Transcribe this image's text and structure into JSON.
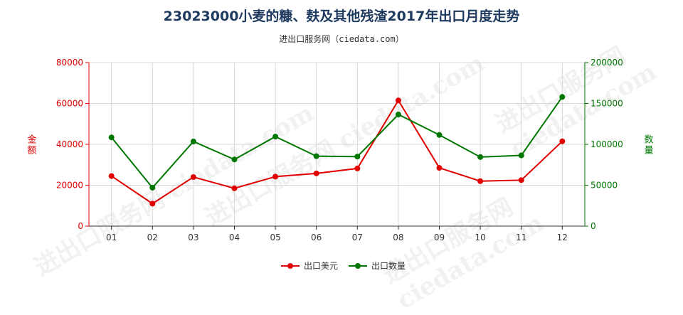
{
  "title": "23023000小麦的糠、麸及其他残渣2017年出口月度走势",
  "subtitle": "进出口服务网（ciedata.com）",
  "watermark": "进出口服务网 ciedata.com",
  "colors": {
    "left_axis": "#e00000",
    "right_axis": "#007700",
    "grid": "#d8d8d8",
    "title": "#1f3a5f"
  },
  "chart_data": {
    "type": "line",
    "title": "23023000小麦的糠、麸及其他残渣2017年出口月度走势",
    "categories": [
      "01",
      "02",
      "03",
      "04",
      "05",
      "06",
      "07",
      "08",
      "09",
      "10",
      "11",
      "12"
    ],
    "y_left": {
      "label": "金额",
      "ylim": [
        0,
        80000
      ],
      "ticks": [
        0,
        20000,
        40000,
        60000,
        80000
      ]
    },
    "y_right": {
      "label": "数量",
      "ylim": [
        0,
        200000
      ],
      "ticks": [
        0,
        50000,
        100000,
        150000,
        200000
      ]
    },
    "grid": true,
    "legend_placement": "bottom-center",
    "series": [
      {
        "name": "出口美元",
        "axis": "left",
        "color": "#e00000",
        "values": [
          24500,
          11000,
          24000,
          18500,
          24200,
          25800,
          28200,
          61500,
          28500,
          22000,
          22500,
          41500
        ]
      },
      {
        "name": "出口数量",
        "axis": "right",
        "color": "#007700",
        "values": [
          108500,
          47000,
          103500,
          81500,
          109500,
          85500,
          85000,
          136500,
          111500,
          84500,
          86500,
          158000
        ]
      }
    ]
  }
}
